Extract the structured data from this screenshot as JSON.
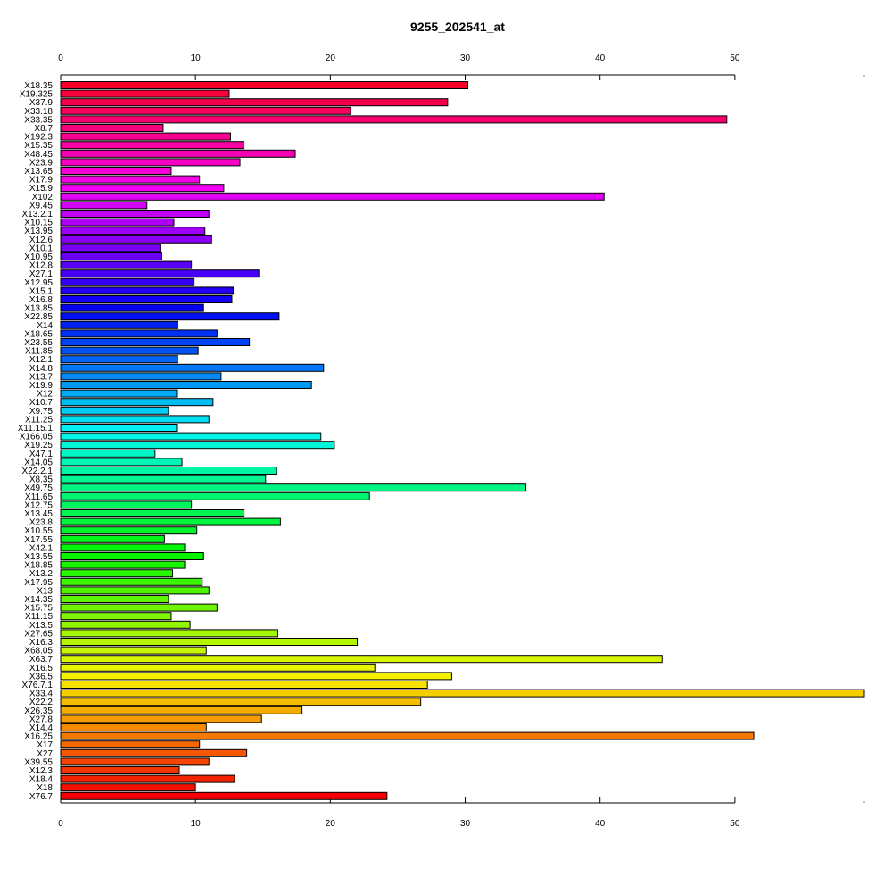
{
  "chart_data": {
    "type": "bar",
    "orientation": "horizontal",
    "title": "9255_202541_at",
    "xlabel": "",
    "ylabel": "",
    "xlim": [
      0,
      59.6
    ],
    "x_ticks": [
      "0",
      "10",
      "20",
      "30",
      "40",
      "50"
    ],
    "x_tick_values": [
      0,
      10,
      20,
      30,
      40,
      50
    ],
    "axes": [
      "top",
      "bottom"
    ],
    "grid": false,
    "legend": "none",
    "categories": [
      "X18.35",
      "X19.325",
      "X37.9",
      "X33.18",
      "X33.35",
      "X8.7",
      "X192.3",
      "X15.35",
      "X48.45",
      "X23.9",
      "X13.65",
      "X17.9",
      "X15.9",
      "X102",
      "X9.45",
      "X13.2.1",
      "X10.15",
      "X13.95",
      "X12.6",
      "X10.1",
      "X10.95",
      "X12.8",
      "X27.1",
      "X12.95",
      "X15.1",
      "X16.8",
      "X13.85",
      "X22.85",
      "X14",
      "X18.65",
      "X23.55",
      "X11.85",
      "X12.1",
      "X14.8",
      "X13.7",
      "X19.9",
      "X12",
      "X10.7",
      "X9.75",
      "X11.25",
      "X11.15.1",
      "X166.05",
      "X19.25",
      "X47.1",
      "X14.05",
      "X22.2.1",
      "X8.35",
      "X49.75",
      "X11.65",
      "X12.75",
      "X13.45",
      "X23.8",
      "X10.55",
      "X17.55",
      "X42.1",
      "X13.55",
      "X18.85",
      "X13.2",
      "X17.95",
      "X13",
      "X14.35",
      "X15.75",
      "X11.15",
      "X13.5",
      "X27.65",
      "X16.3",
      "X68.05",
      "X63.7",
      "X16.5",
      "X36.5",
      "X76.7.1",
      "X33.4",
      "X22.2",
      "X26.35",
      "X27.8",
      "X14.4",
      "X16.25",
      "X17",
      "X27",
      "X39.55",
      "X12.3",
      "X18.4",
      "X18",
      "X76.7"
    ],
    "values": [
      30.2,
      12.5,
      28.7,
      21.5,
      49.4,
      7.6,
      12.6,
      13.6,
      17.4,
      13.3,
      8.2,
      10.3,
      12.1,
      40.3,
      6.4,
      11.0,
      8.4,
      10.7,
      11.2,
      7.4,
      7.5,
      9.7,
      14.7,
      9.9,
      12.8,
      12.7,
      10.6,
      16.2,
      8.7,
      11.6,
      14.0,
      10.2,
      8.7,
      19.5,
      11.9,
      18.6,
      8.6,
      11.3,
      8.0,
      11.0,
      8.6,
      19.3,
      20.3,
      7.0,
      9.0,
      16.0,
      15.2,
      34.5,
      22.9,
      9.7,
      13.6,
      16.3,
      10.1,
      7.7,
      9.2,
      10.6,
      9.2,
      8.3,
      10.5,
      11.0,
      8.0,
      11.6,
      8.2,
      9.6,
      16.1,
      22.0,
      10.8,
      44.6,
      23.3,
      29.0,
      27.2,
      59.6,
      26.7,
      17.9,
      14.9,
      10.8,
      51.4,
      10.3,
      13.8,
      11.0,
      8.8,
      12.9,
      10.0,
      24.2
    ],
    "color_scheme": "rainbow"
  }
}
